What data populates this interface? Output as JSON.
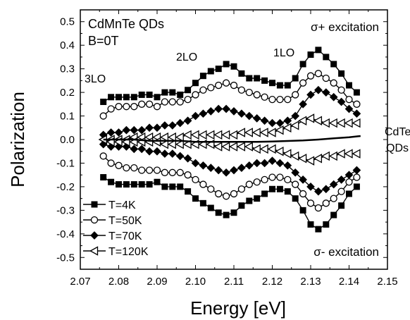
{
  "chart_data": {
    "type": "line",
    "xlabel": "Energy [eV]",
    "ylabel": "Polarization",
    "xlim": [
      2.07,
      2.15
    ],
    "ylim": [
      -0.55,
      0.55
    ],
    "xticks": [
      "2.07",
      "2.08",
      "2.09",
      "2.10",
      "2.11",
      "2.12",
      "2.13",
      "2.14",
      "2.15"
    ],
    "yticks": [
      "-0.5",
      "-0.4",
      "-0.3",
      "-0.2",
      "-0.1",
      "0.0",
      "0.1",
      "0.2",
      "0.3",
      "0.4",
      "0.5"
    ],
    "grid": false,
    "legend_position": "bottom-left",
    "annotations": {
      "sample": "CdMnTe QDs",
      "field": "B=0T",
      "sigma_plus": "σ+ excitation",
      "sigma_minus": "σ- excitation",
      "lo3": "3LO",
      "lo2": "2LO",
      "lo1": "1LO",
      "ref_line1": "CdTe",
      "ref_line2": "QDs"
    },
    "series": [
      {
        "name": "T=4K",
        "marker": "filled-square",
        "color": "#000000",
        "x": [
          2.076,
          2.078,
          2.08,
          2.082,
          2.084,
          2.086,
          2.088,
          2.09,
          2.092,
          2.094,
          2.096,
          2.098,
          2.1,
          2.102,
          2.104,
          2.106,
          2.108,
          2.11,
          2.112,
          2.114,
          2.116,
          2.118,
          2.12,
          2.122,
          2.124,
          2.126,
          2.128,
          2.13,
          2.132,
          2.134,
          2.136,
          2.138,
          2.14,
          2.142
        ],
        "y_plus": [
          0.16,
          0.18,
          0.18,
          0.18,
          0.18,
          0.19,
          0.19,
          0.18,
          0.2,
          0.2,
          0.19,
          0.21,
          0.24,
          0.27,
          0.29,
          0.3,
          0.32,
          0.31,
          0.28,
          0.26,
          0.26,
          0.25,
          0.24,
          0.23,
          0.23,
          0.26,
          0.32,
          0.36,
          0.38,
          0.35,
          0.32,
          0.28,
          0.23,
          0.2
        ],
        "y_minus": [
          -0.16,
          -0.18,
          -0.19,
          -0.19,
          -0.19,
          -0.19,
          -0.19,
          -0.18,
          -0.2,
          -0.2,
          -0.2,
          -0.22,
          -0.25,
          -0.27,
          -0.29,
          -0.31,
          -0.32,
          -0.31,
          -0.28,
          -0.26,
          -0.25,
          -0.23,
          -0.21,
          -0.21,
          -0.22,
          -0.25,
          -0.3,
          -0.36,
          -0.38,
          -0.36,
          -0.32,
          -0.28,
          -0.23,
          -0.2
        ]
      },
      {
        "name": "T=50K",
        "marker": "open-circle",
        "color": "#000000",
        "x": [
          2.076,
          2.078,
          2.08,
          2.082,
          2.084,
          2.086,
          2.088,
          2.09,
          2.092,
          2.094,
          2.096,
          2.098,
          2.1,
          2.102,
          2.104,
          2.106,
          2.108,
          2.11,
          2.112,
          2.114,
          2.116,
          2.118,
          2.12,
          2.122,
          2.124,
          2.126,
          2.128,
          2.13,
          2.132,
          2.134,
          2.136,
          2.138,
          2.14,
          2.142
        ],
        "y_plus": [
          0.1,
          0.13,
          0.14,
          0.14,
          0.14,
          0.15,
          0.15,
          0.14,
          0.16,
          0.16,
          0.16,
          0.17,
          0.19,
          0.21,
          0.22,
          0.23,
          0.24,
          0.23,
          0.21,
          0.2,
          0.19,
          0.18,
          0.17,
          0.17,
          0.17,
          0.19,
          0.24,
          0.27,
          0.28,
          0.26,
          0.24,
          0.21,
          0.17,
          0.15
        ],
        "y_minus": [
          -0.07,
          -0.1,
          -0.11,
          -0.12,
          -0.12,
          -0.13,
          -0.13,
          -0.13,
          -0.14,
          -0.14,
          -0.14,
          -0.15,
          -0.17,
          -0.19,
          -0.21,
          -0.23,
          -0.24,
          -0.23,
          -0.21,
          -0.19,
          -0.18,
          -0.17,
          -0.16,
          -0.16,
          -0.17,
          -0.19,
          -0.23,
          -0.27,
          -0.29,
          -0.27,
          -0.25,
          -0.22,
          -0.18,
          -0.16
        ]
      },
      {
        "name": "T=70K",
        "marker": "filled-diamond",
        "color": "#000000",
        "x": [
          2.076,
          2.078,
          2.08,
          2.082,
          2.084,
          2.086,
          2.088,
          2.09,
          2.092,
          2.094,
          2.096,
          2.098,
          2.1,
          2.102,
          2.104,
          2.106,
          2.108,
          2.11,
          2.112,
          2.114,
          2.116,
          2.118,
          2.12,
          2.122,
          2.124,
          2.126,
          2.128,
          2.13,
          2.132,
          2.134,
          2.136,
          2.138,
          2.14,
          2.142
        ],
        "y_plus": [
          0.02,
          0.03,
          0.03,
          0.04,
          0.04,
          0.04,
          0.05,
          0.05,
          0.06,
          0.06,
          0.07,
          0.08,
          0.1,
          0.11,
          0.12,
          0.13,
          0.13,
          0.12,
          0.11,
          0.1,
          0.09,
          0.08,
          0.07,
          0.07,
          0.08,
          0.1,
          0.15,
          0.19,
          0.21,
          0.2,
          0.18,
          0.16,
          0.13,
          0.11
        ],
        "y_minus": [
          -0.02,
          -0.03,
          -0.03,
          -0.03,
          -0.04,
          -0.04,
          -0.05,
          -0.05,
          -0.06,
          -0.06,
          -0.07,
          -0.08,
          -0.1,
          -0.11,
          -0.12,
          -0.13,
          -0.14,
          -0.13,
          -0.12,
          -0.11,
          -0.1,
          -0.1,
          -0.09,
          -0.1,
          -0.11,
          -0.14,
          -0.17,
          -0.2,
          -0.22,
          -0.21,
          -0.19,
          -0.17,
          -0.15,
          -0.13
        ]
      },
      {
        "name": "T=120K",
        "marker": "open-triangle-left",
        "color": "#000000",
        "x": [
          2.076,
          2.078,
          2.08,
          2.082,
          2.084,
          2.086,
          2.088,
          2.09,
          2.092,
          2.094,
          2.096,
          2.098,
          2.1,
          2.102,
          2.104,
          2.106,
          2.108,
          2.11,
          2.112,
          2.114,
          2.116,
          2.118,
          2.12,
          2.122,
          2.124,
          2.126,
          2.128,
          2.13,
          2.132,
          2.134,
          2.136,
          2.138,
          2.14,
          2.142
        ],
        "y_plus": [
          0.0,
          0.0,
          0.0,
          0.0,
          0.01,
          0.01,
          0.01,
          0.01,
          0.01,
          0.01,
          0.01,
          0.02,
          0.02,
          0.02,
          0.02,
          0.02,
          0.02,
          0.02,
          0.03,
          0.03,
          0.03,
          0.03,
          0.03,
          0.04,
          0.05,
          0.06,
          0.08,
          0.09,
          0.08,
          0.07,
          0.07,
          0.07,
          0.07,
          0.07
        ],
        "y_minus": [
          0.0,
          -0.01,
          -0.01,
          -0.01,
          -0.01,
          -0.01,
          -0.01,
          -0.01,
          -0.02,
          -0.02,
          -0.02,
          -0.02,
          -0.02,
          -0.02,
          -0.02,
          -0.03,
          -0.03,
          -0.03,
          -0.03,
          -0.03,
          -0.04,
          -0.04,
          -0.04,
          -0.05,
          -0.06,
          -0.07,
          -0.08,
          -0.09,
          -0.08,
          -0.07,
          -0.07,
          -0.06,
          -0.06,
          -0.06
        ]
      },
      {
        "name": "",
        "marker": "line",
        "color": "#000000",
        "x": [
          2.076,
          2.08,
          2.084,
          2.088,
          2.092,
          2.096,
          2.1,
          2.104,
          2.108,
          2.112,
          2.116,
          2.12,
          2.124,
          2.128,
          2.132,
          2.136,
          2.14,
          2.143
        ],
        "y": [
          0.0,
          0.0,
          0.0,
          -0.005,
          -0.005,
          -0.005,
          -0.01,
          -0.01,
          -0.01,
          -0.01,
          -0.01,
          -0.008,
          -0.006,
          -0.004,
          0.0,
          0.005,
          0.01,
          0.015
        ]
      }
    ]
  }
}
